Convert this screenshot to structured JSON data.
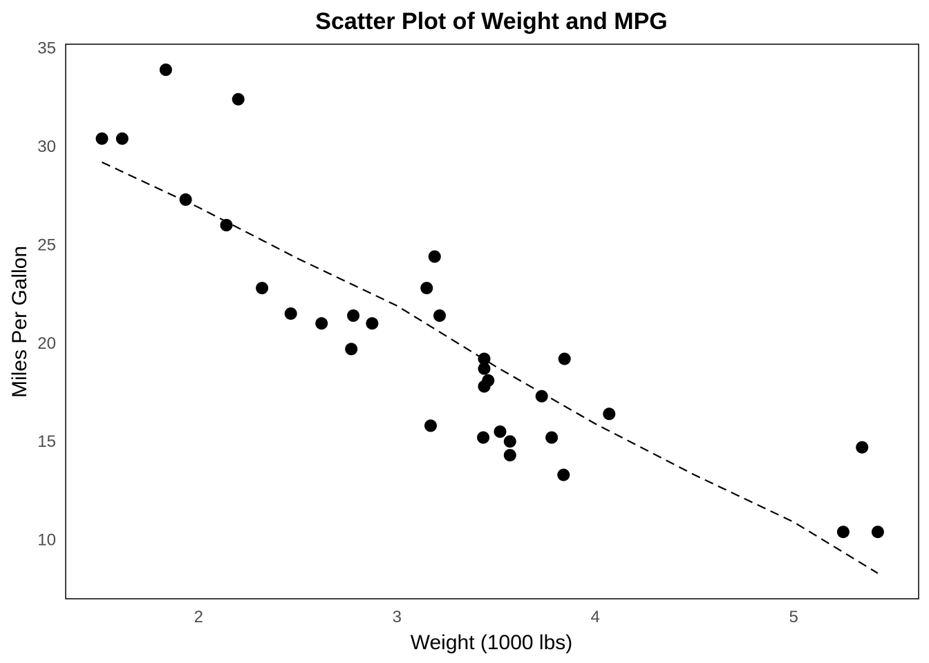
{
  "chart_data": {
    "type": "scatter",
    "title": "Scatter Plot of Weight and MPG",
    "xlabel": "Weight (1000 lbs)",
    "ylabel": "Miles Per Gallon",
    "xlim": [
      1.33,
      5.63
    ],
    "ylim": [
      7.0,
      35.2
    ],
    "xticks": [
      2,
      3,
      4,
      5
    ],
    "yticks": [
      10,
      15,
      20,
      25,
      30,
      35
    ],
    "grid": false,
    "legend": "none",
    "point_color": "#000000",
    "points": [
      {
        "x": 1.513,
        "y": 30.4
      },
      {
        "x": 1.615,
        "y": 30.4
      },
      {
        "x": 1.835,
        "y": 33.9
      },
      {
        "x": 1.935,
        "y": 27.3
      },
      {
        "x": 2.14,
        "y": 26.0
      },
      {
        "x": 2.2,
        "y": 32.4
      },
      {
        "x": 2.32,
        "y": 22.8
      },
      {
        "x": 2.465,
        "y": 21.5
      },
      {
        "x": 2.62,
        "y": 21.0
      },
      {
        "x": 2.77,
        "y": 19.7
      },
      {
        "x": 2.78,
        "y": 21.4
      },
      {
        "x": 2.875,
        "y": 21.0
      },
      {
        "x": 3.15,
        "y": 22.8
      },
      {
        "x": 3.17,
        "y": 15.8
      },
      {
        "x": 3.19,
        "y": 24.4
      },
      {
        "x": 3.215,
        "y": 21.4
      },
      {
        "x": 3.435,
        "y": 15.2
      },
      {
        "x": 3.44,
        "y": 18.7
      },
      {
        "x": 3.44,
        "y": 19.2
      },
      {
        "x": 3.44,
        "y": 17.8
      },
      {
        "x": 3.46,
        "y": 18.1
      },
      {
        "x": 3.52,
        "y": 15.5
      },
      {
        "x": 3.57,
        "y": 14.3
      },
      {
        "x": 3.57,
        "y": 15.0
      },
      {
        "x": 3.73,
        "y": 17.3
      },
      {
        "x": 3.78,
        "y": 15.2
      },
      {
        "x": 3.84,
        "y": 13.3
      },
      {
        "x": 3.845,
        "y": 19.2
      },
      {
        "x": 4.07,
        "y": 16.4
      },
      {
        "x": 5.25,
        "y": 10.4
      },
      {
        "x": 5.345,
        "y": 14.7
      },
      {
        "x": 5.424,
        "y": 10.4
      }
    ],
    "trend_line": {
      "style": "dashed",
      "x": [
        1.513,
        2.0,
        2.5,
        3.0,
        3.5,
        4.0,
        4.5,
        5.0,
        5.424
      ],
      "y": [
        29.2,
        26.9,
        24.3,
        21.9,
        18.8,
        15.9,
        13.3,
        10.9,
        8.3
      ]
    }
  }
}
